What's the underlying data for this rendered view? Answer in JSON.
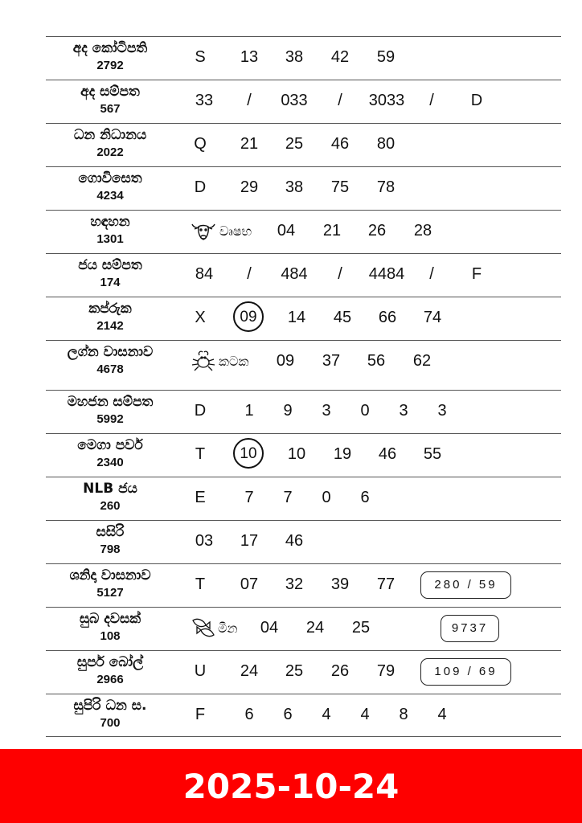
{
  "rows": [
    {
      "name": "අද කෝටිපති",
      "code": "2792",
      "tokens": [
        "S",
        "13",
        "38",
        "42",
        "59"
      ]
    },
    {
      "name": "අද සම්පත",
      "code": "567",
      "tokens": [
        "33",
        "/",
        "033",
        "/",
        "3033",
        "/",
        "D"
      ]
    },
    {
      "name": "ධන නිධානය",
      "code": "2022",
      "tokens": [
        "Q",
        "21",
        "25",
        "46",
        "80"
      ]
    },
    {
      "name": "ගොවිසෙත",
      "code": "4234",
      "tokens": [
        "D",
        "29",
        "38",
        "75",
        "78"
      ]
    },
    {
      "name": "හඳහන",
      "code": "1301",
      "zodiac": {
        "icon": "bull-icon",
        "label": "වෘෂභ"
      },
      "tokens": [
        "04",
        "21",
        "26",
        "28"
      ]
    },
    {
      "name": "ජය සම්පත",
      "code": "174",
      "tokens": [
        "84",
        "/",
        "484",
        "/",
        "4484",
        "/",
        "F"
      ]
    },
    {
      "name": "කප්රුක",
      "code": "2142",
      "tokens": [
        "X",
        "09",
        "14",
        "45",
        "66",
        "74"
      ],
      "circled": 1
    },
    {
      "name": "ලග්න වාසනාව",
      "code": "4678",
      "zodiac": {
        "icon": "crab-icon",
        "label": "කටක"
      },
      "tokens": [
        "09",
        "37",
        "56",
        "62"
      ]
    },
    {
      "name": "මහජන සම්පත",
      "code": "5992",
      "tokens": [
        "D",
        "1",
        "9",
        "3",
        "0",
        "3",
        "3"
      ]
    },
    {
      "name": "මෙගා පවර්",
      "code": "2340",
      "tokens": [
        "T",
        "10",
        "10",
        "19",
        "46",
        "55"
      ],
      "circled": 1
    },
    {
      "name": "NLB ජය",
      "code": "260",
      "tokens": [
        "E",
        "7",
        "7",
        "0",
        "6"
      ]
    },
    {
      "name": "සසිරි",
      "code": "798",
      "tokens": [
        "03",
        "17",
        "46"
      ]
    },
    {
      "name": "ශනිදා වාසනාව",
      "code": "5127",
      "tokens": [
        "T",
        "07",
        "32",
        "39",
        "77"
      ],
      "box": "280 / 59"
    },
    {
      "name": "සුබ දවසක්",
      "code": "108",
      "zodiac": {
        "icon": "fish-icon",
        "label": "මීන"
      },
      "tokens": [
        "04",
        "24",
        "25"
      ],
      "box": "9737"
    },
    {
      "name": "සුපර් බෝල්",
      "code": "2966",
      "tokens": [
        "U",
        "24",
        "25",
        "26",
        "79"
      ],
      "box": "109 / 69"
    },
    {
      "name": "සුපිරි ධන ස.",
      "code": "700",
      "tokens": [
        "F",
        "6",
        "6",
        "4",
        "4",
        "8",
        "4"
      ]
    }
  ],
  "footer": {
    "date": "2025-10-24",
    "background": "#fe0000"
  }
}
